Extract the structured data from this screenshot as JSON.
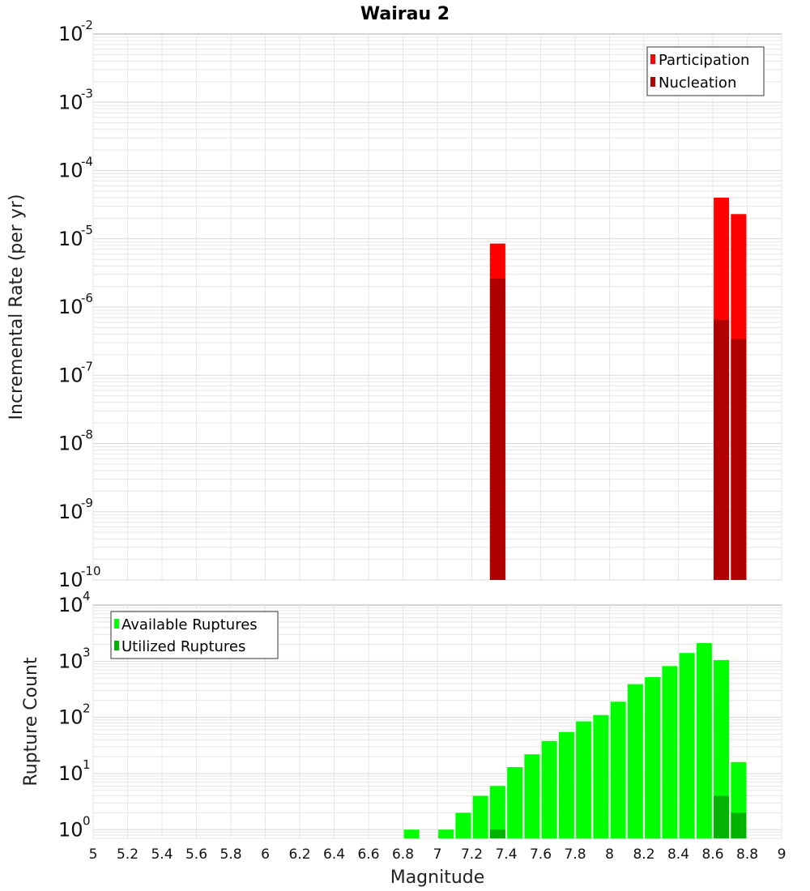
{
  "title": "Wairau 2",
  "colors": {
    "participation": "#ff0000",
    "nucleation": "#b00000",
    "available": "#00ff00",
    "utilized": "#00b300",
    "grid": "#e6e6e6",
    "frame": "#aaaaaa"
  },
  "chart_data": [
    {
      "type": "bar",
      "title": "Wairau 2",
      "ylabel": "Incremental Rate (per yr)",
      "xlabel": "",
      "scale": "log",
      "ylim": [
        1e-10,
        0.01
      ],
      "xlim": [
        5,
        9
      ],
      "legend": "top-right",
      "ytick_exponents": [
        "-2",
        "-3",
        "-4",
        "-5",
        "-6",
        "-7",
        "-8",
        "-9",
        "-10"
      ],
      "series": [
        {
          "name": "Participation",
          "color": "#ff0000",
          "x": [
            7.35,
            8.65,
            8.75
          ],
          "values": [
            8.5e-06,
            4e-05,
            2.3e-05
          ]
        },
        {
          "name": "Nucleation",
          "color": "#b00000",
          "x": [
            7.35,
            8.65,
            8.75
          ],
          "values": [
            2.6e-06,
            6.5e-07,
            3.4e-07
          ]
        }
      ]
    },
    {
      "type": "bar",
      "ylabel": "Rupture Count",
      "xlabel": "Magnitude",
      "scale": "log",
      "ylim": [
        0.7,
        10000
      ],
      "xlim": [
        5,
        9
      ],
      "legend": "top-left",
      "ytick_exponents": [
        "4",
        "3",
        "2",
        "1",
        "0"
      ],
      "xticks": [
        "5",
        "5.2",
        "5.4",
        "5.6",
        "5.8",
        "6",
        "6.2",
        "6.4",
        "6.6",
        "6.8",
        "7",
        "7.2",
        "7.4",
        "7.6",
        "7.8",
        "8",
        "8.2",
        "8.4",
        "8.6",
        "8.8",
        "9"
      ],
      "series": [
        {
          "name": "Available Ruptures",
          "color": "#00ff00",
          "x": [
            6.85,
            7.05,
            7.15,
            7.25,
            7.35,
            7.45,
            7.55,
            7.65,
            7.75,
            7.85,
            7.95,
            8.05,
            8.15,
            8.25,
            8.35,
            8.45,
            8.55,
            8.65,
            8.75
          ],
          "values": [
            1,
            1,
            2,
            4,
            6,
            13,
            22,
            38,
            55,
            85,
            110,
            190,
            390,
            520,
            820,
            1400,
            2100,
            1050,
            16
          ]
        },
        {
          "name": "Utilized Ruptures",
          "color": "#00b300",
          "x": [
            7.35,
            8.65,
            8.75
          ],
          "values": [
            1,
            4,
            2
          ]
        }
      ]
    }
  ]
}
